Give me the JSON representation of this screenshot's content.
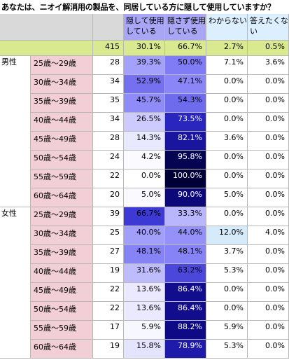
{
  "title": "あなたは、ニオイ解消用の製品を、同居している方に隠して使用していますか？",
  "colors": {
    "gray": "#d9d9d9",
    "total_row": "#d8e98f",
    "age_label": "#f2cfd6",
    "border": "#b8b8b8"
  },
  "chart_data": {
    "type": "table",
    "columns": [
      "隠して使用している",
      "隠さず使用している",
      "わからない",
      "答えたくない"
    ],
    "total": {
      "n": "415",
      "values": [
        "30.1%",
        "66.7%",
        "2.7%",
        "0.5%"
      ]
    },
    "groups": [
      {
        "name": "男性",
        "rows": [
          {
            "age": "25歳～29歳",
            "n": "28",
            "values": [
              "39.3%",
              "50.0%",
              "7.1%",
              "3.6%"
            ]
          },
          {
            "age": "30歳～34歳",
            "n": "34",
            "values": [
              "52.9%",
              "47.1%",
              "0.0%",
              "0.0%"
            ]
          },
          {
            "age": "35歳～39歳",
            "n": "35",
            "values": [
              "45.7%",
              "54.3%",
              "0.0%",
              "0.0%"
            ]
          },
          {
            "age": "40歳～44歳",
            "n": "34",
            "values": [
              "26.5%",
              "73.5%",
              "0.0%",
              "0.0%"
            ]
          },
          {
            "age": "45歳～49歳",
            "n": "28",
            "values": [
              "14.3%",
              "82.1%",
              "3.6%",
              "0.0%"
            ]
          },
          {
            "age": "50歳～54歳",
            "n": "24",
            "values": [
              "4.2%",
              "95.8%",
              "0.0%",
              "0.0%"
            ]
          },
          {
            "age": "55歳～59歳",
            "n": "22",
            "values": [
              "0.0%",
              "100.0%",
              "0.0%",
              "0.0%"
            ]
          },
          {
            "age": "60歳～64歳",
            "n": "20",
            "values": [
              "5.0%",
              "90.0%",
              "5.0%",
              "0.0%"
            ]
          }
        ]
      },
      {
        "name": "女性",
        "rows": [
          {
            "age": "25歳～29歳",
            "n": "39",
            "values": [
              "66.7%",
              "33.3%",
              "0.0%",
              "0.0%"
            ]
          },
          {
            "age": "30歳～34歳",
            "n": "25",
            "values": [
              "40.0%",
              "44.0%",
              "12.0%",
              "4.0%"
            ]
          },
          {
            "age": "35歳～39歳",
            "n": "27",
            "values": [
              "48.1%",
              "48.1%",
              "3.7%",
              "0.0%"
            ]
          },
          {
            "age": "40歳～44歳",
            "n": "19",
            "values": [
              "31.6%",
              "63.2%",
              "5.3%",
              "0.0%"
            ]
          },
          {
            "age": "45歳～49歳",
            "n": "22",
            "values": [
              "13.6%",
              "86.4%",
              "0.0%",
              "0.0%"
            ]
          },
          {
            "age": "50歳～54歳",
            "n": "22",
            "values": [
              "13.6%",
              "86.4%",
              "0.0%",
              "0.0%"
            ]
          },
          {
            "age": "55歳～59歳",
            "n": "17",
            "values": [
              "5.9%",
              "88.2%",
              "5.9%",
              "0.0%"
            ]
          },
          {
            "age": "60歳～64歳",
            "n": "19",
            "values": [
              "15.8%",
              "78.9%",
              "5.3%",
              "0.0%"
            ]
          }
        ]
      }
    ]
  }
}
